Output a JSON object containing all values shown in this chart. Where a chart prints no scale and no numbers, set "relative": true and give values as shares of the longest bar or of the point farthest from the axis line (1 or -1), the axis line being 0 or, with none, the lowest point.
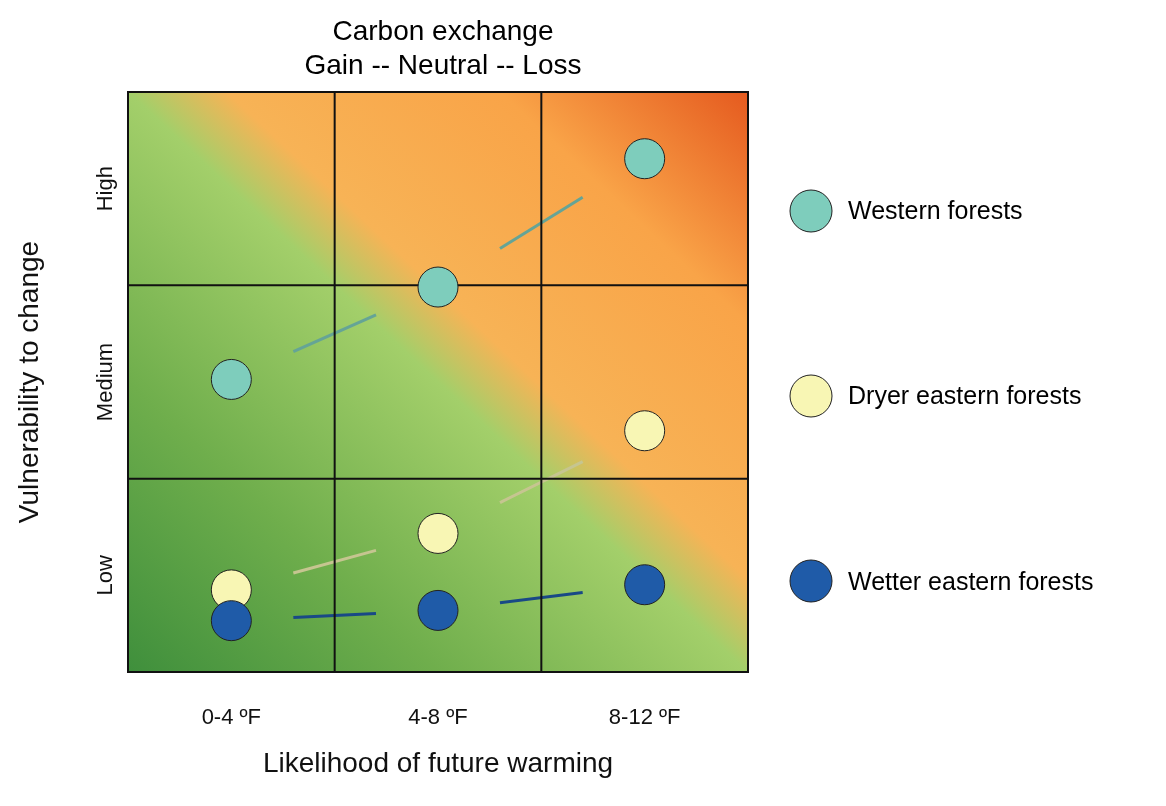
{
  "chart_data": {
    "type": "scatter",
    "title": "Carbon exchange",
    "subtitle": "Gain -- Neutral -- Loss",
    "xlabel": "Likelihood of future warming",
    "ylabel": "Vulnerability to change",
    "categories": [
      "0-4 ºF",
      "4-8 ºF",
      "8-12 ºF"
    ],
    "relative": true,
    "annotations": [
      "Low",
      "Medium",
      "High"
    ],
    "series": [
      {
        "name": "Western forests",
        "color": "#7ecdbc",
        "values": [
          0.57,
          0.75,
          1
        ]
      },
      {
        "name": "Dryer eastern forests",
        "color": "#f8f6b4",
        "values": [
          0.16,
          0.27,
          0.47
        ]
      },
      {
        "name": "Wetter eastern forests",
        "color": "#1f5ba8",
        "values": [
          0.1,
          0.12,
          0.17
        ]
      }
    ],
    "marker": "circle",
    "grid": true,
    "legend": "right"
  }
}
